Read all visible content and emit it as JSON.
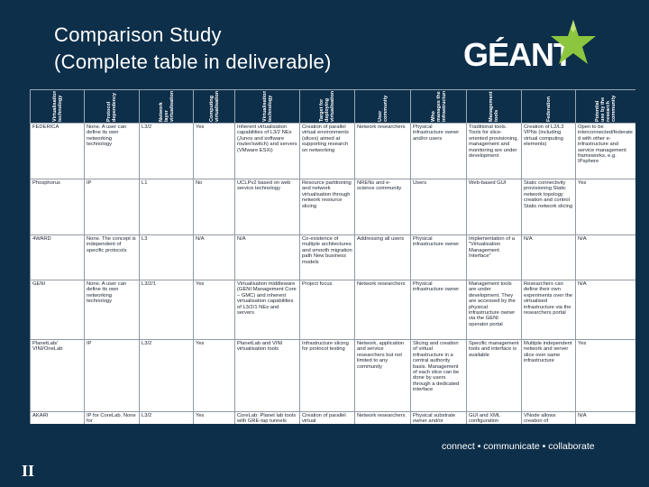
{
  "title": {
    "line1": "Comparison Study",
    "line2": "(Complete table in deliverable)"
  },
  "logo": {
    "text": "GÉANT"
  },
  "footer": "connect • communicate • collaborate",
  "corner_mark": "II",
  "colors": {
    "background": "#0e2f4a",
    "header_bg": "#0e2f4a",
    "text": "#ffffff",
    "logo_star": "#8cc63f"
  },
  "table": {
    "headers": [
      "Virtualisation technology",
      "Protocol dependency",
      "Network layer virtualisation",
      "Computing virtualisation",
      "Virtualisation technology",
      "Target for deploying virtualisation",
      "User community",
      "Who manages the infrastructure",
      "Management tools",
      "Federation",
      "Potential use by the research community"
    ],
    "rows": [
      [
        "FEDERICA",
        "None. A user can define its own networking technology",
        "L3/2",
        "Yes",
        "Inherent virtualisation capabilities of L3/2 NEs (Junos and software router/switch) and servers (VMware ESXi)",
        "Creation of parallel virtual environments (slices) aimed at supporting research on networking",
        "Network researchers",
        "Physical infrastructure owner and/or users",
        "Traditional tools. Tools for slice-oriented provisioning, management and monitoring are under development",
        "Creation of L2/L3 VPNs (including virtual computing elements)",
        "Open to be interconnected/federated with other e-infrastructure and service management frameworks, e.g. IPsphere"
      ],
      [
        "Phosphorus",
        "IP",
        "L1",
        "No",
        "UCLPv2 based on web service technology",
        "Resource partitioning and network virtualisation through network resource slicing",
        "NRENs and e-science community",
        "Users",
        "Web-based GUI",
        "Static connectivity provisioning Static network topology creation and control Static network slicing",
        "Yes"
      ],
      [
        "4WARD",
        "None. The concept is independent of specific protocols",
        "L3",
        "N/A",
        "N/A",
        "Co-existence of multiple architectures and smooth migration path New business models",
        "Addressing all users",
        "Physical infrastructure owner",
        "Implementation of a \"Virtualisation Management Interface\"",
        "N/A",
        "N/A"
      ],
      [
        "GENI",
        "None. A user can define its own networking technology",
        "L3/2/1",
        "Yes",
        "Virtualisation middleware (GENI Management Core – GMC) and inherent virtualisation capabilities of L3/2/1 NEs and servers",
        "Project focus",
        "Network researchers",
        "Physical infrastructure owner",
        "Management tools are under development. They are accessed by the physical infrastructure owner via the GENI operator portal",
        "Researchers can define their own experiments over the virtualised infrastructure via the researchers portal",
        "N/A"
      ],
      [
        "PlanetLab/ VINI/OneLab",
        "IP",
        "L3/2",
        "Yes",
        "PlanetLab and VINI virtualisation tools",
        "Infrastructure slicing for protocol testing",
        "Network, application and service researchers but not limited to any community",
        "Slicing and creation of virtual infrastructure in a central authority basis. Management of each slice can be done by users through a dedicated interface",
        "Specific management tools and interface is available",
        "Multiple independent network and server slice over same infrastructure",
        "Yes"
      ],
      [
        "AKARI",
        "IP for CoreLab. None for",
        "L3/2",
        "Yes",
        "CoreLab: Planet lab tools with GRE-tap tunnels",
        "Creation of parallel virtual",
        "Network researchers",
        "Physical substrate owner and/or",
        "GUI and XML configuration",
        "VNode allows creation of",
        "N/A"
      ]
    ]
  }
}
